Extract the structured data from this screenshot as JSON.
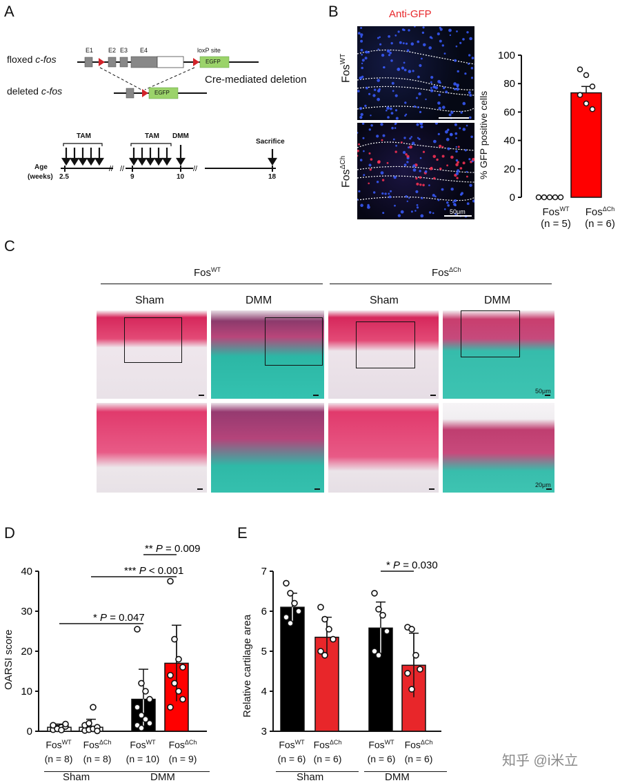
{
  "panel_letters": [
    "A",
    "B",
    "C",
    "D",
    "E"
  ],
  "panelA": {
    "floxed_label": "floxed ",
    "floxed_gene": "c-fos",
    "deleted_label": "deleted ",
    "deleted_gene": "c-fos",
    "exons": [
      "E1",
      "E2",
      "E3",
      "E4"
    ],
    "loxp_label": "loxP site",
    "egfp": "EGFP",
    "cre_text": "Cre-mediated deletion",
    "timeline": {
      "tam1": "TAM",
      "tam2": "TAM",
      "dmm": "DMM",
      "sacrifice": "Sacrifice",
      "age": "Age",
      "weeks": "(weeks)",
      "ticks": [
        "2.5",
        "9",
        "10",
        "18"
      ]
    }
  },
  "panelB": {
    "title": "Anti-GFP",
    "row1": "Fos",
    "row1_sup": "WT",
    "row2": "Fos",
    "row2_sup": "ΔCh",
    "scale": "50μm",
    "chart_data": {
      "type": "bar",
      "categories": [
        "FosWT (n = 5)",
        "FosΔCh (n = 6)"
      ],
      "values": [
        0,
        73.5
      ],
      "errors": [
        0,
        4.5
      ],
      "points": [
        [
          0,
          0,
          0,
          0,
          0
        ],
        [
          90,
          86,
          78,
          72,
          66,
          62
        ]
      ],
      "ylabel": "% GFP positive cells",
      "ylim": [
        0,
        100
      ],
      "yticks": [
        "0",
        "20",
        "40",
        "60",
        "80",
        "100"
      ],
      "colors": [
        "#000000",
        "#ff0000"
      ]
    },
    "xlabels": [
      {
        "main": "Fos",
        "sup": "WT",
        "n": "(n = 5)"
      },
      {
        "main": "Fos",
        "sup": "ΔCh",
        "n": "(n = 6)"
      }
    ]
  },
  "panelC": {
    "group1": "Fos",
    "group1_sup": "WT",
    "group2": "Fos",
    "group2_sup": "ΔCh",
    "cols": [
      "Sham",
      "DMM",
      "Sham",
      "DMM"
    ],
    "scale_top": "50μm",
    "scale_bottom": "20μm"
  },
  "panelD": {
    "chart_data": {
      "type": "bar",
      "categories": [
        "FosWT Sham (n = 8)",
        "FosΔCh Sham (n = 8)",
        "FosWT DMM (n = 10)",
        "FosΔCh DMM (n = 9)"
      ],
      "values": [
        1.0,
        1.0,
        8.0,
        17.0
      ],
      "errors": [
        0.8,
        2.0,
        7.5,
        9.5
      ],
      "points": [
        [
          0.4,
          0.8,
          1.0,
          1.2,
          1.5,
          0.6,
          0.3,
          1.8
        ],
        [
          0.2,
          0.4,
          0.6,
          1.0,
          1.5,
          2.0,
          6.0,
          0.1
        ],
        [
          25.5,
          12,
          10,
          8,
          6,
          4,
          3,
          2,
          1.5,
          0.8
        ],
        [
          37.5,
          23,
          18,
          16,
          14,
          12,
          10,
          8,
          6
        ]
      ],
      "ylabel": "OARSI score",
      "ylim": [
        0,
        40
      ],
      "yticks": [
        "0",
        "10",
        "20",
        "30",
        "40"
      ],
      "colors": [
        "#ffffff",
        "#ffffff",
        "#000000",
        "#ff0000"
      ],
      "annotations": [
        {
          "stars": "*",
          "p": "P",
          "text": " = 0.047"
        },
        {
          "stars": "***",
          "p": "P",
          "text": " < 0.001"
        },
        {
          "stars": "**",
          "p": "P",
          "text": " = 0.009"
        }
      ]
    },
    "xlabels": [
      {
        "main": "Fos",
        "sup": "WT",
        "n": "(n = 8)"
      },
      {
        "main": "Fos",
        "sup": "ΔCh",
        "n": "(n = 8)"
      },
      {
        "main": "Fos",
        "sup": "WT",
        "n": "(n = 10)"
      },
      {
        "main": "Fos",
        "sup": "ΔCh",
        "n": "(n = 9)"
      }
    ],
    "groups": [
      "Sham",
      "DMM"
    ]
  },
  "panelE": {
    "chart_data": {
      "type": "bar",
      "categories": [
        "FosWT Sham (n = 6)",
        "FosΔCh Sham (n = 6)",
        "FosWT DMM (n = 6)",
        "FosΔCh DMM (n = 6)"
      ],
      "values": [
        6.1,
        5.35,
        5.58,
        4.65
      ],
      "errors": [
        0.35,
        0.5,
        0.65,
        0.8
      ],
      "points": [
        [
          6.7,
          6.45,
          6.2,
          6.0,
          5.85,
          5.7
        ],
        [
          6.1,
          5.8,
          5.55,
          5.3,
          5.0,
          4.9
        ],
        [
          6.45,
          6.05,
          5.9,
          5.5,
          5.0,
          4.9
        ],
        [
          5.6,
          5.55,
          4.9,
          4.55,
          4.45,
          4.05
        ]
      ],
      "ylabel": "Relative cartilage area",
      "ylim": [
        3,
        7
      ],
      "yticks": [
        "3",
        "4",
        "5",
        "6",
        "7"
      ],
      "colors": [
        "#000000",
        "#e8262a",
        "#000000",
        "#e8262a"
      ],
      "annotations": [
        {
          "stars": "*",
          "p": "P",
          "text": " = 0.030"
        }
      ]
    },
    "xlabels": [
      {
        "main": "Fos",
        "sup": "WT",
        "n": "(n = 6)"
      },
      {
        "main": "Fos",
        "sup": "ΔCh",
        "n": "(n = 6)"
      },
      {
        "main": "Fos",
        "sup": "WT",
        "n": "(n = 6)"
      },
      {
        "main": "Fos",
        "sup": "ΔCh",
        "n": "(n = 6)"
      }
    ],
    "groups": [
      "Sham",
      "DMM"
    ]
  },
  "watermark": "知乎 @i米立"
}
